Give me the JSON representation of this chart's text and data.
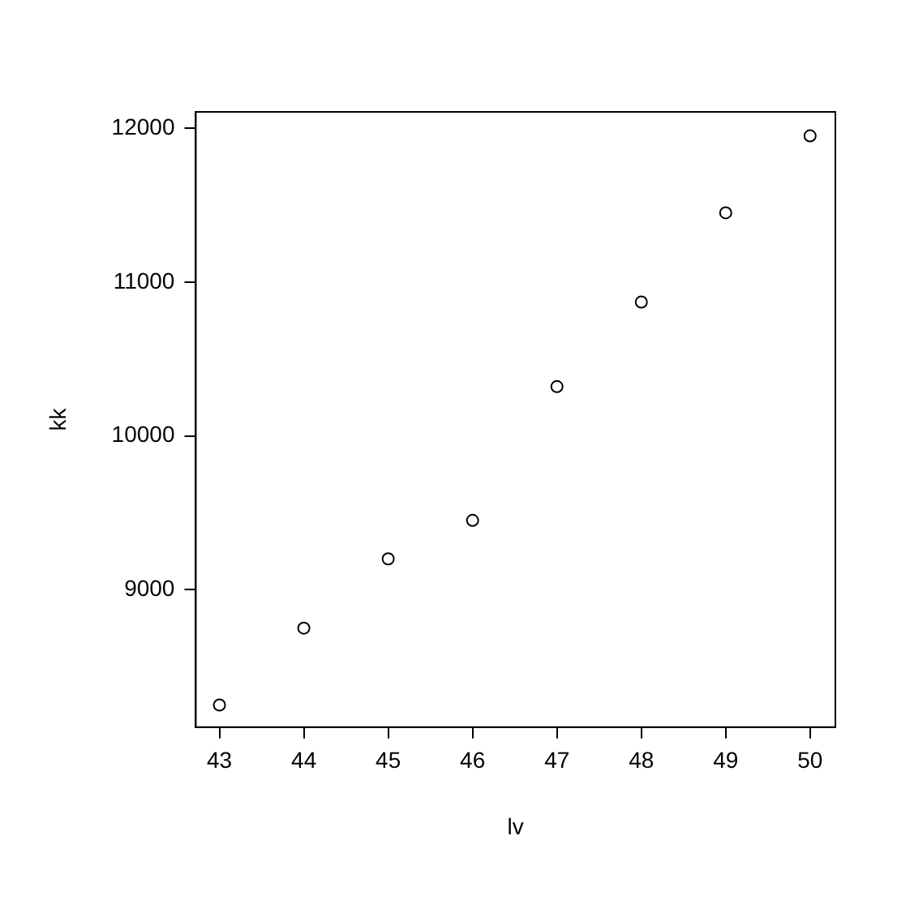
{
  "chart_data": {
    "type": "scatter",
    "xlabel": "lv",
    "ylabel": "kk",
    "x": [
      43,
      44,
      45,
      46,
      47,
      48,
      49,
      50
    ],
    "series": [
      {
        "color": "#000000",
        "values": [
          8250,
          8750,
          9200,
          9450,
          10320,
          10870,
          11450,
          11950
        ]
      }
    ],
    "xlim": [
      42.72,
      50.3
    ],
    "xticks": [
      43,
      44,
      45,
      46,
      47,
      48,
      49,
      50
    ],
    "ylim": [
      8106,
      12106
    ],
    "yticks": [
      9000,
      10000,
      11000,
      12000
    ],
    "grid": false,
    "legend": false,
    "marker": "circle"
  }
}
